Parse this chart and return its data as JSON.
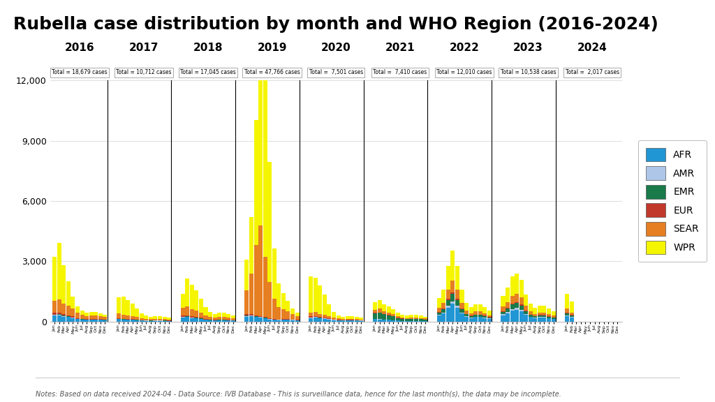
{
  "title": "Rubella case distribution by month and WHO Region (2016-2024)",
  "note": "Notes: Based on data received 2024-04 - Data Source: IVB Database - This is surveillance data, hence for the last month(s), the data may be incomplete.",
  "regions": [
    "AFR",
    "AMR",
    "EMR",
    "EUR",
    "SEAR",
    "WPR"
  ],
  "colors": {
    "AFR": "#2196d4",
    "AMR": "#aec7e8",
    "EMR": "#1a7a4a",
    "EUR": "#c0392b",
    "SEAR": "#e67e22",
    "WPR": "#f5f500"
  },
  "years": [
    2016,
    2017,
    2018,
    2019,
    2020,
    2021,
    2022,
    2023,
    2024
  ],
  "year_totals": {
    "2016": "Total = 18,679 cases",
    "2017": "Total = 10,712 cases",
    "2018": "Total = 17,045 cases",
    "2019": "Total = 47,766 cases",
    "2020": "Total =  7,501 cases",
    "2021": "Total =  7,410 cases",
    "2022": "Total = 12,010 cases",
    "2023": "Total = 10,538 cases",
    "2024": "Total =  2,017 cases"
  },
  "months": [
    "Jan",
    "Feb",
    "Mar",
    "Apr",
    "May",
    "Jun",
    "Jul",
    "Aug",
    "Sep",
    "Oct",
    "Nov",
    "Dec"
  ],
  "data": {
    "2016": {
      "AFR": [
        300,
        320,
        250,
        220,
        180,
        120,
        100,
        80,
        90,
        90,
        80,
        70
      ],
      "AMR": [
        30,
        30,
        25,
        20,
        20,
        15,
        12,
        10,
        12,
        12,
        10,
        8
      ],
      "EMR": [
        20,
        20,
        18,
        15,
        12,
        10,
        8,
        7,
        8,
        8,
        7,
        6
      ],
      "EUR": [
        80,
        90,
        70,
        60,
        50,
        35,
        28,
        22,
        25,
        25,
        22,
        18
      ],
      "SEAR": [
        600,
        650,
        550,
        480,
        380,
        250,
        200,
        160,
        180,
        180,
        160,
        130
      ],
      "WPR": [
        2200,
        2800,
        1900,
        1200,
        600,
        320,
        200,
        150,
        180,
        180,
        140,
        110
      ]
    },
    "2017": {
      "AFR": [
        120,
        100,
        90,
        80,
        70,
        55,
        45,
        40,
        45,
        45,
        40,
        35
      ],
      "AMR": [
        15,
        12,
        10,
        9,
        8,
        6,
        5,
        4,
        5,
        5,
        4,
        4
      ],
      "EMR": [
        10,
        8,
        7,
        6,
        5,
        4,
        3,
        3,
        3,
        3,
        3,
        3
      ],
      "EUR": [
        30,
        25,
        22,
        20,
        16,
        12,
        10,
        9,
        10,
        10,
        9,
        8
      ],
      "SEAR": [
        250,
        210,
        190,
        165,
        140,
        100,
        80,
        70,
        80,
        80,
        70,
        60
      ],
      "WPR": [
        800,
        900,
        750,
        600,
        400,
        220,
        150,
        120,
        140,
        140,
        110,
        90
      ]
    },
    "2018": {
      "AFR": [
        200,
        220,
        180,
        160,
        130,
        90,
        72,
        62,
        70,
        70,
        62,
        52
      ],
      "AMR": [
        25,
        22,
        18,
        16,
        13,
        9,
        7,
        6,
        7,
        7,
        6,
        5
      ],
      "EMR": [
        15,
        14,
        11,
        10,
        8,
        6,
        4,
        4,
        4,
        4,
        4,
        3
      ],
      "EUR": [
        55,
        60,
        48,
        42,
        34,
        24,
        19,
        16,
        18,
        18,
        16,
        13
      ],
      "SEAR": [
        400,
        440,
        360,
        320,
        260,
        180,
        144,
        124,
        140,
        140,
        124,
        104
      ],
      "WPR": [
        700,
        1400,
        1200,
        1000,
        700,
        400,
        250,
        180,
        220,
        220,
        170,
        140
      ]
    },
    "2019": {
      "AFR": [
        250,
        270,
        220,
        200,
        160,
        110,
        88,
        76,
        86,
        86,
        76,
        64
      ],
      "AMR": [
        30,
        28,
        22,
        20,
        16,
        11,
        9,
        8,
        9,
        9,
        8,
        6
      ],
      "EMR": [
        18,
        16,
        13,
        12,
        10,
        7,
        5,
        5,
        5,
        5,
        5,
        4
      ],
      "EUR": [
        70,
        75,
        60,
        55,
        44,
        30,
        24,
        21,
        24,
        24,
        21,
        17
      ],
      "SEAR": [
        1200,
        2000,
        3500,
        4500,
        3000,
        1800,
        1000,
        600,
        500,
        400,
        280,
        180
      ],
      "WPR": [
        1500,
        2800,
        6200,
        9400,
        8800,
        6000,
        2500,
        1200,
        800,
        500,
        280,
        180
      ]
    },
    "2020": {
      "AFR": [
        180,
        200,
        160,
        140,
        110,
        78,
        62,
        54,
        60,
        60,
        54,
        45
      ],
      "AMR": [
        22,
        20,
        16,
        14,
        11,
        8,
        6,
        5,
        6,
        6,
        5,
        4
      ],
      "EMR": [
        14,
        12,
        10,
        9,
        7,
        5,
        4,
        3,
        4,
        4,
        3,
        3
      ],
      "EUR": [
        50,
        55,
        44,
        38,
        31,
        22,
        17,
        15,
        17,
        17,
        15,
        12
      ],
      "SEAR": [
        180,
        200,
        160,
        140,
        110,
        78,
        62,
        54,
        60,
        60,
        54,
        45
      ],
      "WPR": [
        1800,
        1700,
        1400,
        1000,
        600,
        280,
        160,
        110,
        130,
        130,
        100,
        80
      ]
    },
    "2021": {
      "AFR": [
        120,
        110,
        90,
        80,
        65,
        46,
        37,
        32,
        36,
        36,
        32,
        26
      ],
      "AMR": [
        15,
        13,
        10,
        9,
        8,
        5,
        4,
        4,
        4,
        4,
        4,
        3
      ],
      "EMR": [
        280,
        320,
        260,
        230,
        185,
        130,
        104,
        90,
        100,
        100,
        90,
        75
      ],
      "EUR": [
        20,
        18,
        15,
        13,
        11,
        7,
        6,
        5,
        6,
        6,
        5,
        4
      ],
      "SEAR": [
        160,
        180,
        145,
        128,
        103,
        72,
        58,
        50,
        56,
        56,
        50,
        42
      ],
      "WPR": [
        380,
        420,
        340,
        300,
        240,
        170,
        136,
        118,
        132,
        132,
        118,
        98
      ]
    },
    "2022": {
      "AFR": [
        300,
        400,
        700,
        900,
        700,
        400,
        240,
        180,
        220,
        220,
        180,
        140
      ],
      "AMR": [
        35,
        48,
        84,
        108,
        84,
        48,
        29,
        22,
        26,
        26,
        22,
        17
      ],
      "EMR": [
        120,
        160,
        280,
        360,
        280,
        160,
        96,
        72,
        88,
        88,
        72,
        56
      ],
      "EUR": [
        30,
        40,
        70,
        90,
        70,
        40,
        24,
        18,
        22,
        22,
        18,
        14
      ],
      "SEAR": [
        200,
        270,
        470,
        600,
        470,
        270,
        162,
        122,
        148,
        148,
        122,
        94
      ],
      "WPR": [
        500,
        660,
        1150,
        1480,
        1150,
        660,
        396,
        298,
        362,
        362,
        298,
        230
      ]
    },
    "2023": {
      "AFR": [
        320,
        420,
        560,
        600,
        520,
        340,
        220,
        170,
        200,
        200,
        160,
        130
      ],
      "AMR": [
        38,
        50,
        67,
        72,
        62,
        41,
        26,
        20,
        24,
        24,
        19,
        16
      ],
      "EMR": [
        130,
        170,
        227,
        243,
        210,
        138,
        89,
        69,
        81,
        81,
        65,
        52
      ],
      "EUR": [
        32,
        42,
        56,
        60,
        52,
        34,
        22,
        17,
        20,
        20,
        16,
        13
      ],
      "SEAR": [
        220,
        285,
        380,
        406,
        351,
        230,
        148,
        115,
        135,
        135,
        108,
        87
      ],
      "WPR": [
        550,
        718,
        957,
        1022,
        884,
        580,
        374,
        289,
        340,
        340,
        272,
        218
      ]
    },
    "2024": {
      "AFR": [
        280,
        200,
        0,
        0,
        0,
        0,
        0,
        0,
        0,
        0,
        0,
        0
      ],
      "AMR": [
        33,
        24,
        0,
        0,
        0,
        0,
        0,
        0,
        0,
        0,
        0,
        0
      ],
      "EMR": [
        114,
        81,
        0,
        0,
        0,
        0,
        0,
        0,
        0,
        0,
        0,
        0
      ],
      "EUR": [
        28,
        20,
        0,
        0,
        0,
        0,
        0,
        0,
        0,
        0,
        0,
        0
      ],
      "SEAR": [
        190,
        136,
        0,
        0,
        0,
        0,
        0,
        0,
        0,
        0,
        0,
        0
      ],
      "WPR": [
        750,
        535,
        0,
        0,
        0,
        0,
        0,
        0,
        0,
        0,
        0,
        0
      ]
    }
  },
  "ylim": [
    0,
    12000
  ],
  "yticks": [
    0,
    3000,
    6000,
    9000,
    12000
  ],
  "bg_color": "#ffffff"
}
